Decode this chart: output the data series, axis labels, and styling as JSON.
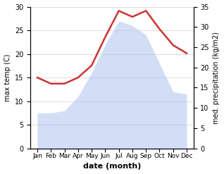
{
  "months": [
    "Jan",
    "Feb",
    "Mar",
    "Apr",
    "May",
    "Jun",
    "Jul",
    "Aug",
    "Sep",
    "Oct",
    "Nov",
    "Dec"
  ],
  "month_indices": [
    0,
    1,
    2,
    3,
    4,
    5,
    6,
    7,
    8,
    9,
    10,
    11
  ],
  "temp_max": [
    7.5,
    7.5,
    8.0,
    11.0,
    16.0,
    22.0,
    27.0,
    26.0,
    24.0,
    18.0,
    12.0,
    11.5
  ],
  "precipitation": [
    17.5,
    16.0,
    16.0,
    17.5,
    20.5,
    27.5,
    34.0,
    32.5,
    34.0,
    29.5,
    25.5,
    23.5
  ],
  "temp_fill_color": "#b0c4ef",
  "precip_color": "#cc3333",
  "temp_ylim": [
    0,
    30
  ],
  "precip_ylim": [
    0,
    35
  ],
  "temp_yticks": [
    0,
    5,
    10,
    15,
    20,
    25,
    30
  ],
  "precip_yticks": [
    0,
    5,
    10,
    15,
    20,
    25,
    30,
    35
  ],
  "xlabel": "date (month)",
  "ylabel_left": "max temp (C)",
  "ylabel_right": "med. precipitation (kg/m2)",
  "background_color": "#ffffff",
  "fill_alpha": 0.55,
  "linewidth": 1.8
}
